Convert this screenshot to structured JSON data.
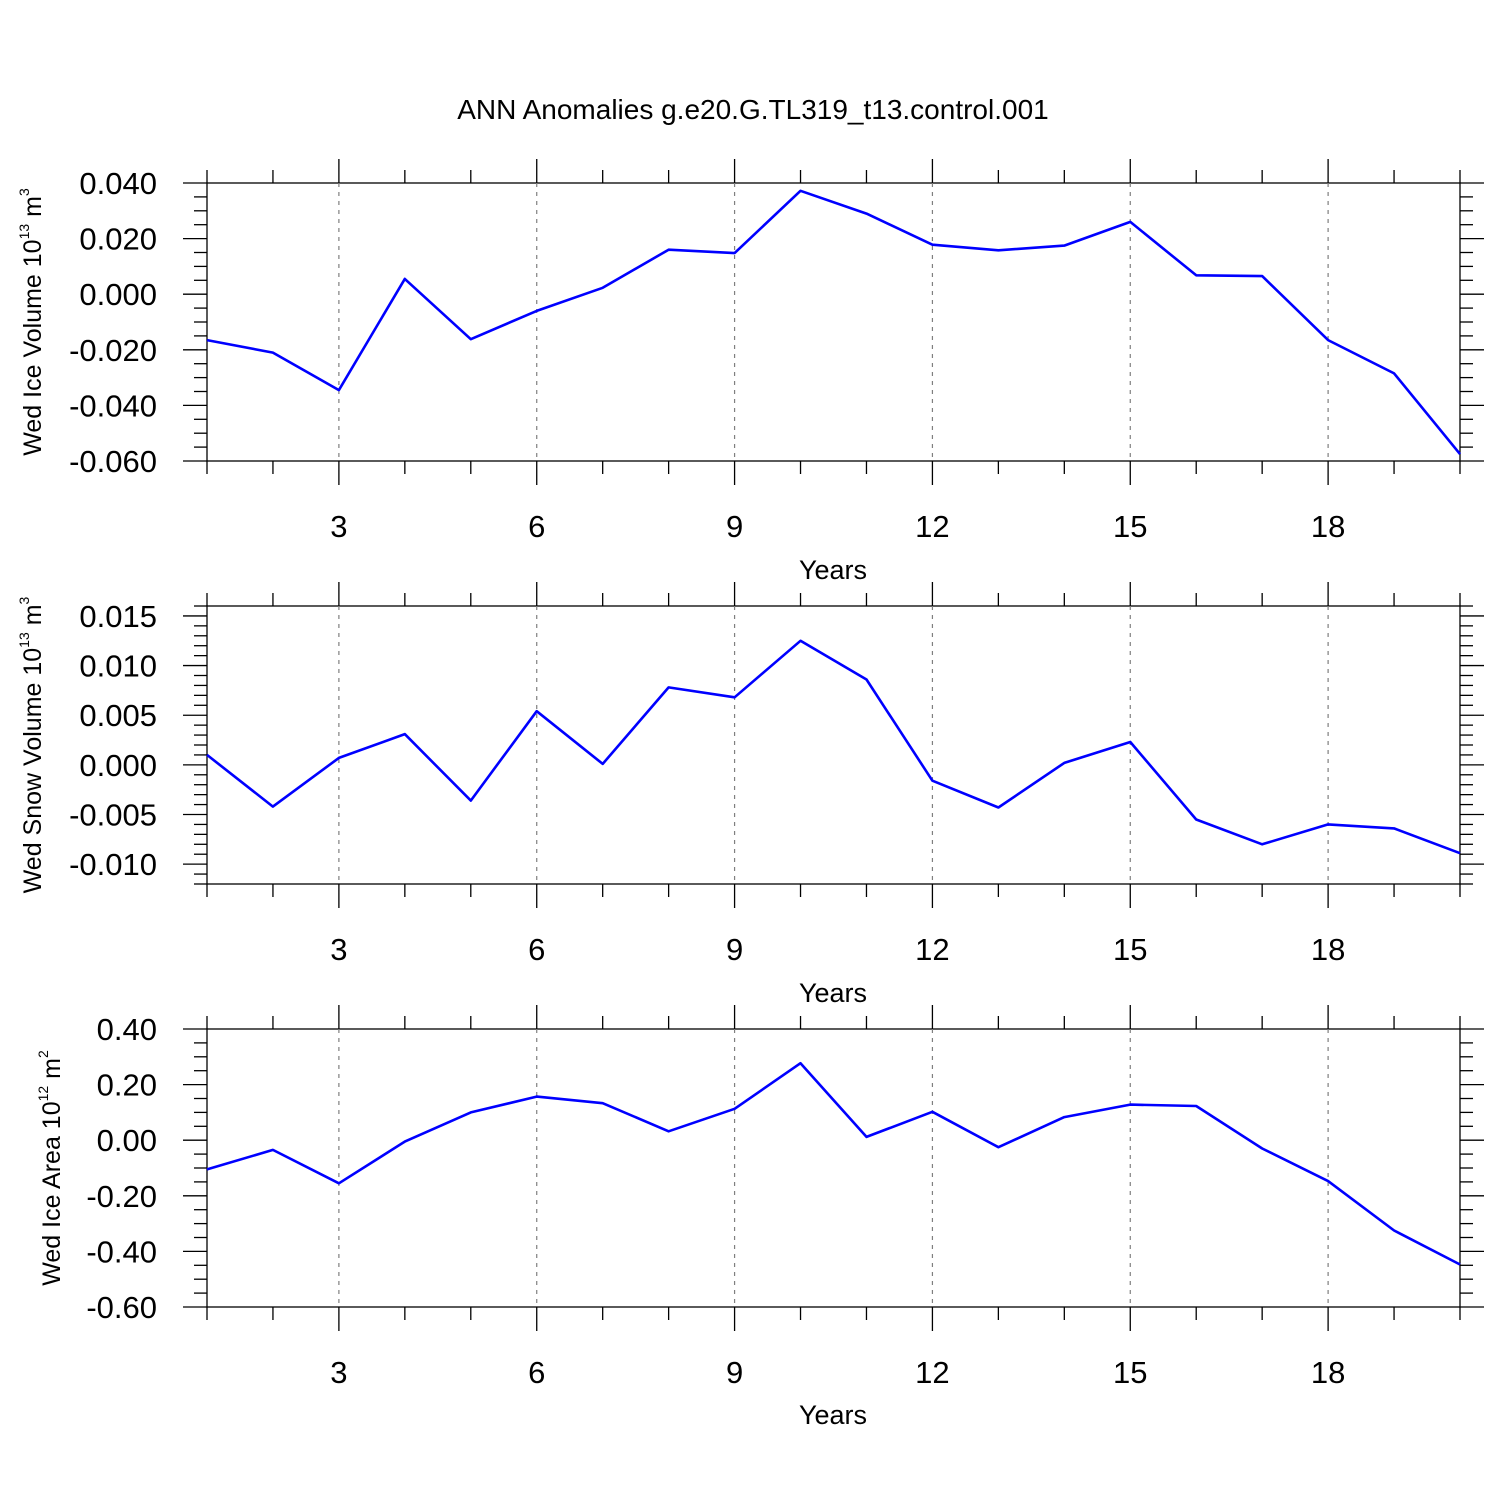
{
  "figure": {
    "title": "ANN Anomalies g.e20.G.TL319_t13.control.001",
    "line_color": "#0000ff"
  },
  "chart_data": [
    {
      "type": "line",
      "ylabel": "Wed Ice Volume 10",
      "ylabel_exp": "13",
      "ylabel_unit": " m",
      "ylabel_unit_exp": "3",
      "xlabel": "Years",
      "xlim": [
        1,
        20
      ],
      "ylim": [
        -0.06,
        0.04
      ],
      "yticks": [
        0.04,
        0.02,
        0.0,
        -0.02,
        -0.04,
        -0.06
      ],
      "ytick_labels": [
        "0.040",
        "0.020",
        "0.000",
        "-0.020",
        "-0.040",
        "-0.060"
      ],
      "yminor_step": 0.005,
      "xticks": [
        3,
        6,
        9,
        12,
        15,
        18
      ],
      "xtick_labels": [
        "3",
        "6",
        "9",
        "12",
        "15",
        "18"
      ],
      "grid": "x-dashed",
      "x": [
        1,
        2,
        3,
        4,
        5,
        6,
        7,
        8,
        9,
        10,
        11,
        12,
        13,
        14,
        15,
        16,
        17,
        18,
        19,
        20
      ],
      "y": [
        -0.0165,
        -0.021,
        -0.0345,
        0.0055,
        -0.0162,
        -0.006,
        0.0023,
        0.016,
        0.0148,
        0.0372,
        0.029,
        0.0178,
        0.0158,
        0.0175,
        0.026,
        0.0068,
        0.0065,
        -0.0165,
        -0.0285,
        -0.0575
      ]
    },
    {
      "type": "line",
      "ylabel": "Wed Snow Volume 10",
      "ylabel_exp": "13",
      "ylabel_unit": " m",
      "ylabel_unit_exp": "3",
      "xlabel": "Years",
      "xlim": [
        1,
        20
      ],
      "ylim": [
        -0.012,
        0.016
      ],
      "yticks": [
        0.015,
        0.01,
        0.005,
        0.0,
        -0.005,
        -0.01
      ],
      "ytick_labels": [
        "0.015",
        "0.010",
        "0.005",
        "0.000",
        "-0.005",
        "-0.010"
      ],
      "yminor_step": 0.001,
      "xticks": [
        3,
        6,
        9,
        12,
        15,
        18
      ],
      "xtick_labels": [
        "3",
        "6",
        "9",
        "12",
        "15",
        "18"
      ],
      "grid": "x-dashed",
      "x": [
        1,
        2,
        3,
        4,
        5,
        6,
        7,
        8,
        9,
        10,
        11,
        12,
        13,
        14,
        15,
        16,
        17,
        18,
        19,
        20
      ],
      "y": [
        0.001,
        -0.0042,
        0.0007,
        0.0031,
        -0.0036,
        0.0054,
        0.0001,
        0.0078,
        0.0068,
        0.0125,
        0.0086,
        -0.0016,
        -0.0043,
        0.0002,
        0.0023,
        -0.0055,
        -0.008,
        -0.006,
        -0.0064,
        -0.0089
      ]
    },
    {
      "type": "line",
      "ylabel": "Wed Ice Area 10",
      "ylabel_exp": "12",
      "ylabel_unit": " m",
      "ylabel_unit_exp": "2",
      "xlabel": "Years",
      "xlim": [
        1,
        20
      ],
      "ylim": [
        -0.6,
        0.4
      ],
      "yticks": [
        0.4,
        0.2,
        0.0,
        -0.2,
        -0.4,
        -0.6
      ],
      "ytick_labels": [
        "0.40",
        "0.20",
        "0.00",
        "-0.20",
        "-0.40",
        "-0.60"
      ],
      "yminor_step": 0.05,
      "xticks": [
        3,
        6,
        9,
        12,
        15,
        18
      ],
      "xtick_labels": [
        "3",
        "6",
        "9",
        "12",
        "15",
        "18"
      ],
      "grid": "x-dashed",
      "x": [
        1,
        2,
        3,
        4,
        5,
        6,
        7,
        8,
        9,
        10,
        11,
        12,
        13,
        14,
        15,
        16,
        17,
        18,
        19,
        20
      ],
      "y": [
        -0.105,
        -0.035,
        -0.155,
        -0.005,
        0.1,
        0.157,
        0.133,
        0.032,
        0.113,
        0.277,
        0.012,
        0.102,
        -0.025,
        0.083,
        0.128,
        0.123,
        -0.03,
        -0.147,
        -0.325,
        -0.447
      ]
    }
  ]
}
